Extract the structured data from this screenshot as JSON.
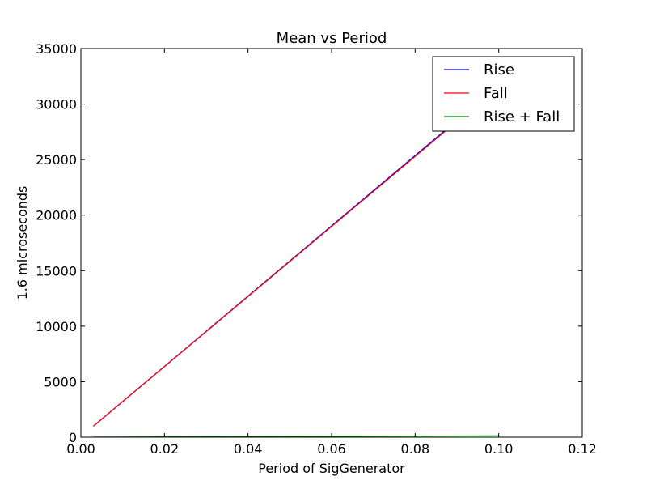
{
  "chart_data": {
    "type": "line",
    "title": "Mean vs Period",
    "xlabel": "Period of SigGenerator",
    "ylabel": "1.6 microseconds",
    "xlim": [
      0,
      0.12
    ],
    "ylim": [
      0,
      35000
    ],
    "xticks": [
      0.0,
      0.02,
      0.04,
      0.06,
      0.08,
      0.1,
      0.12
    ],
    "xtick_labels": [
      "0.00",
      "0.02",
      "0.04",
      "0.06",
      "0.08",
      "0.10",
      "0.12"
    ],
    "yticks": [
      0,
      5000,
      10000,
      15000,
      20000,
      25000,
      30000,
      35000
    ],
    "ytick_labels": [
      "0",
      "5000",
      "10000",
      "15000",
      "20000",
      "25000",
      "30000",
      "35000"
    ],
    "grid": false,
    "legend_position": "top-right",
    "series": [
      {
        "name": "Rise",
        "color": "#0000ff",
        "x": [
          0.003,
          0.1
        ],
        "y": [
          1000,
          31700
        ]
      },
      {
        "name": "Fall",
        "color": "#ff0000",
        "x": [
          0.003,
          0.1
        ],
        "y": [
          1000,
          31600
        ]
      },
      {
        "name": "Rise + Fall",
        "color": "#008000",
        "x": [
          0.003,
          0.1
        ],
        "y": [
          10,
          120
        ]
      }
    ]
  }
}
